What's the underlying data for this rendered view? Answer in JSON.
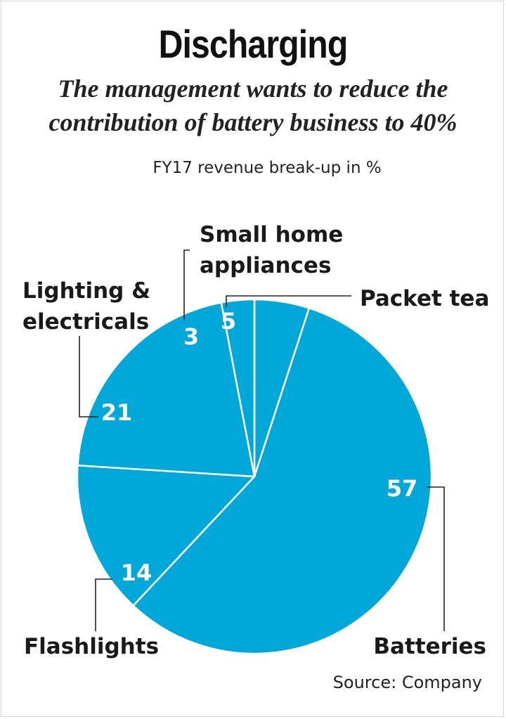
{
  "title": "Discharging",
  "subtitle_line1": "The management wants to reduce the",
  "subtitle_line2": "contribution of battery business to 40%",
  "source": "Source: Company",
  "colors": {
    "slice": "#00a8da",
    "slice_edge": "#ffffff",
    "leader": "#222222"
  },
  "chart_data": {
    "type": "pie",
    "title": "FY17 revenue break-up in %",
    "slices": [
      {
        "name": "Packet tea",
        "label_lines": [
          "Packet tea"
        ],
        "value": 5
      },
      {
        "name": "Batteries",
        "label_lines": [
          "Batteries"
        ],
        "value": 57
      },
      {
        "name": "Flashlights",
        "label_lines": [
          "Flashlights"
        ],
        "value": 14
      },
      {
        "name": "Lighting & electricals",
        "label_lines": [
          "Lighting &",
          "electricals"
        ],
        "value": 21
      },
      {
        "name": "Small home appliances",
        "label_lines": [
          "Small home",
          "appliances"
        ],
        "value": 3
      }
    ]
  }
}
